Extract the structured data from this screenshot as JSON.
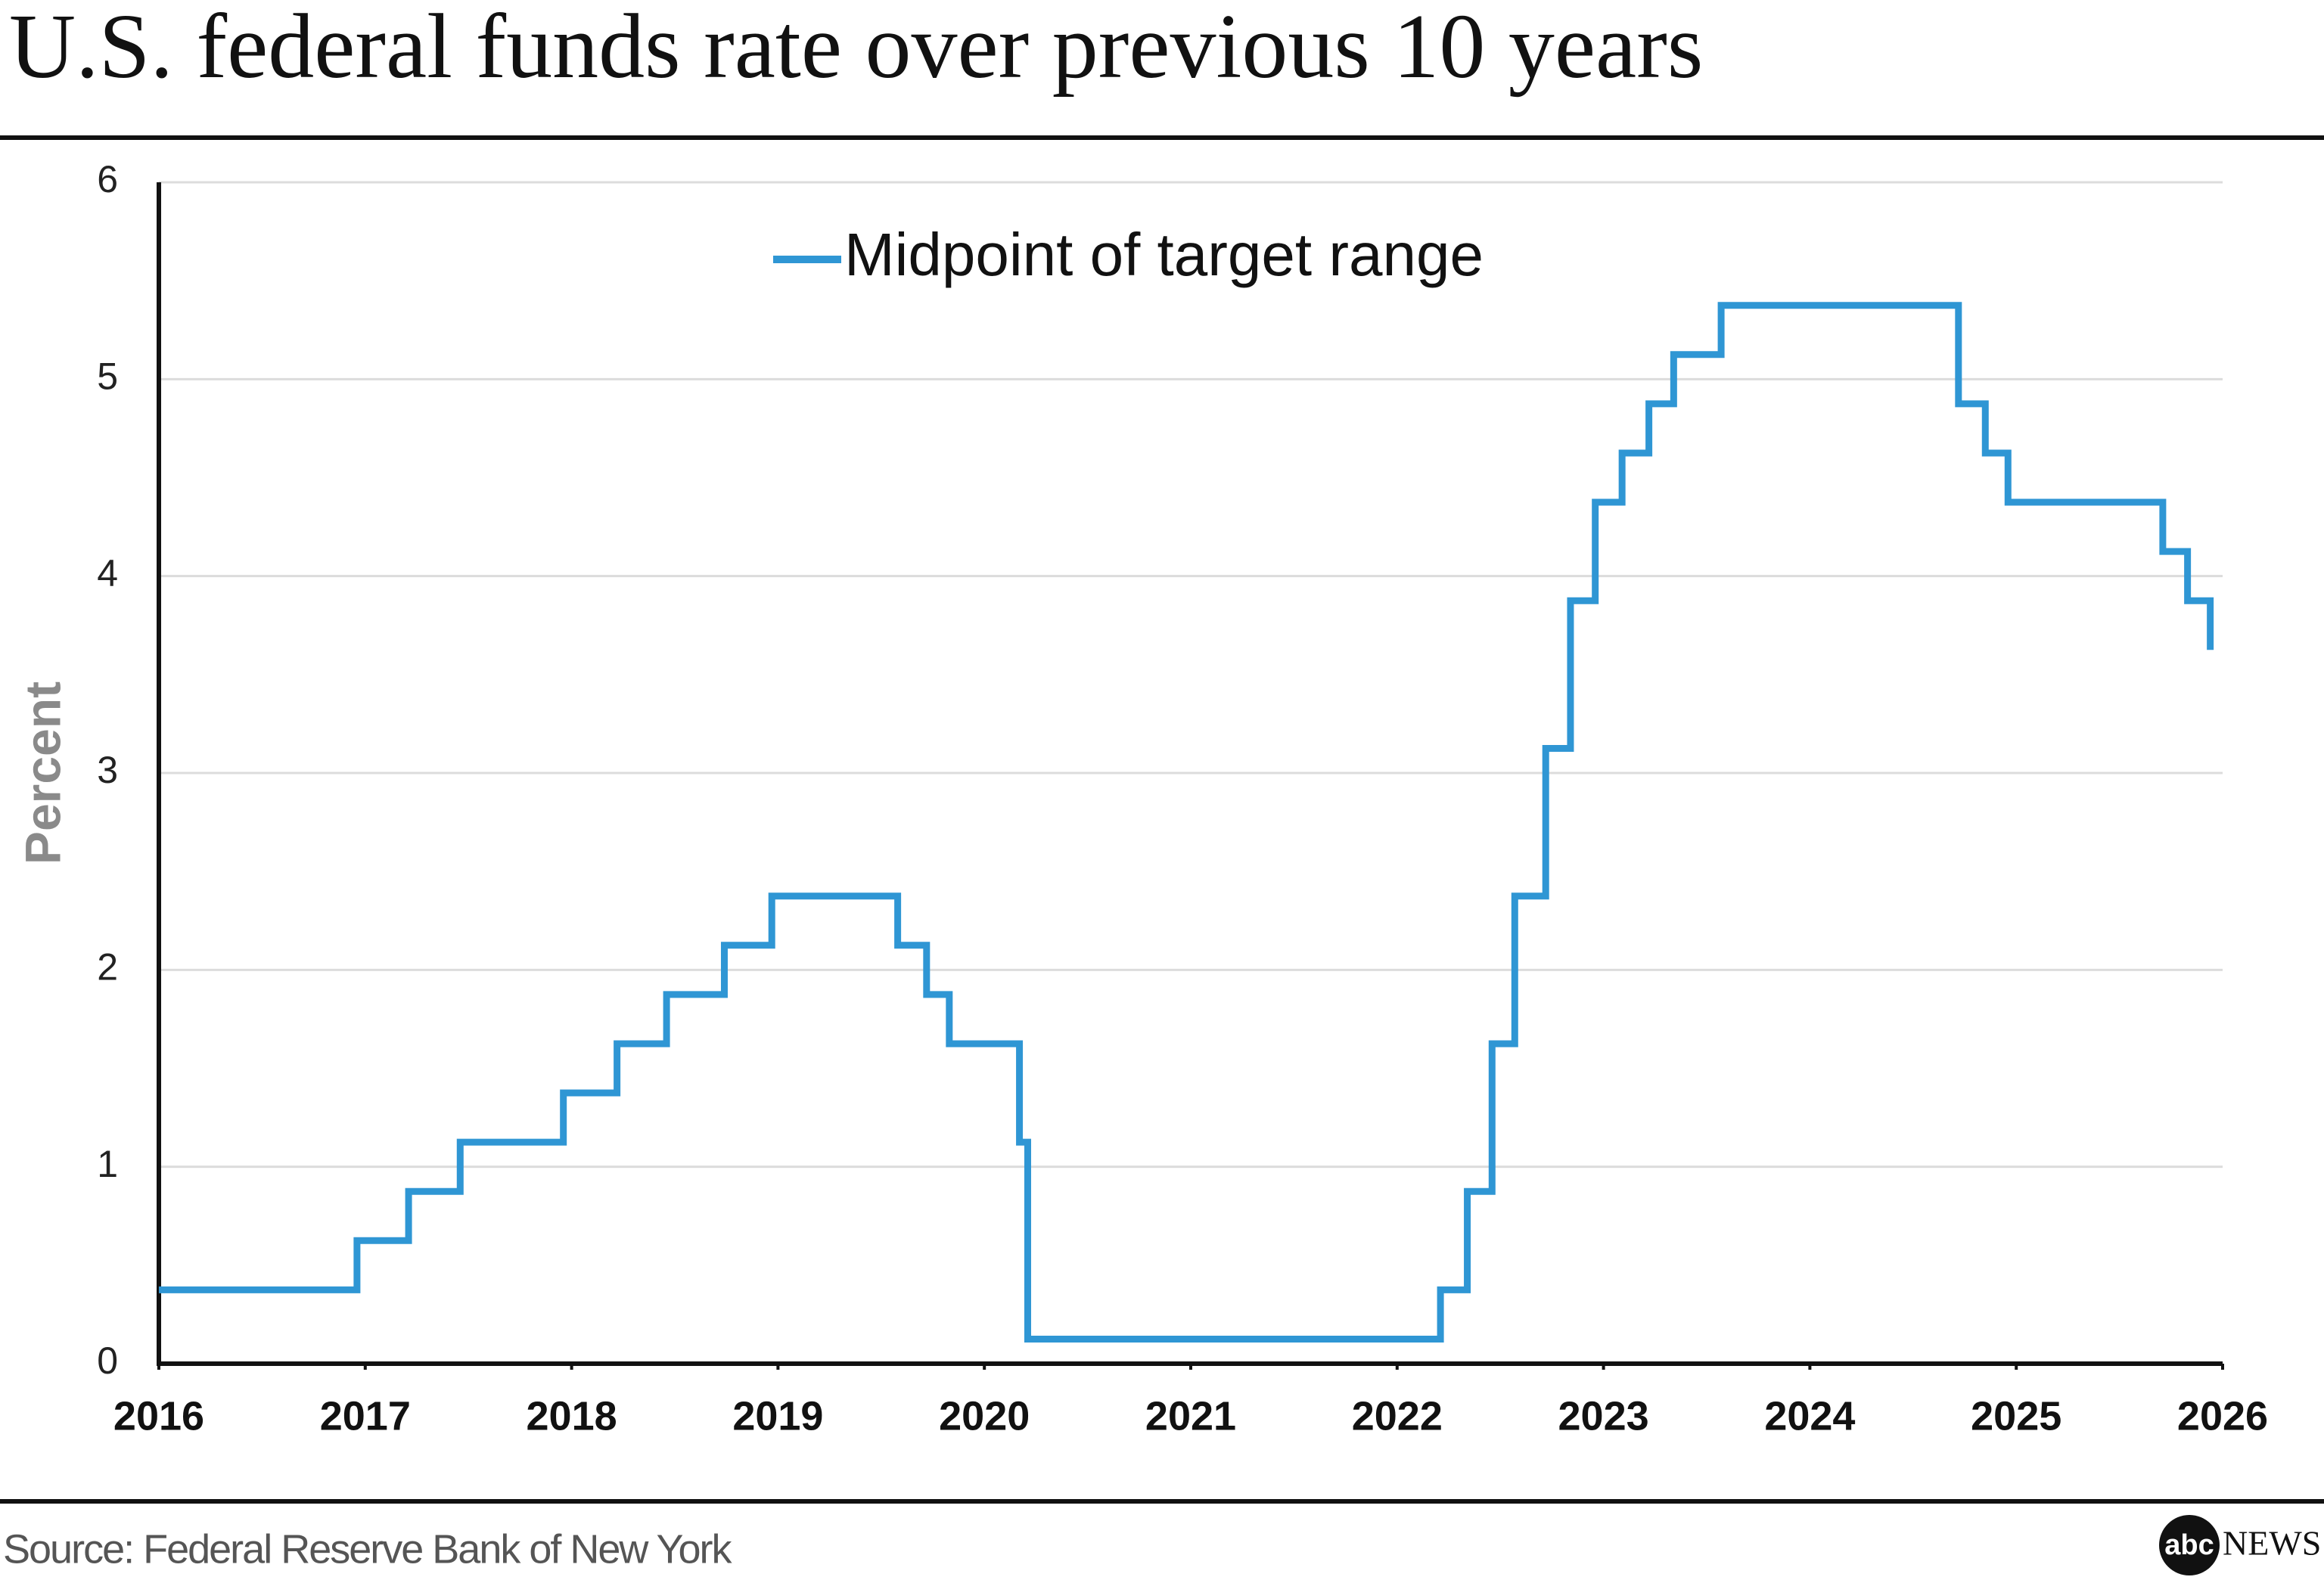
{
  "chart_data": {
    "type": "line",
    "step": true,
    "title": "U.S. federal funds rate over previous 10 years",
    "ylabel": "Percent",
    "source": "Source: Federal Reserve Bank of New York",
    "logo_badge": "abc",
    "logo_text": "NEWS",
    "x": [
      2016.0,
      2016.96,
      2017.21,
      2017.46,
      2017.96,
      2018.22,
      2018.46,
      2018.74,
      2018.97,
      2019.58,
      2019.72,
      2019.83,
      2020.17,
      2020.21,
      2022.21,
      2022.34,
      2022.46,
      2022.57,
      2022.72,
      2022.84,
      2022.96,
      2023.09,
      2023.22,
      2023.34,
      2023.57,
      2024.72,
      2024.85,
      2024.96,
      2025.71,
      2025.83,
      2025.94
    ],
    "series": [
      {
        "name": "Midpoint of target range",
        "color": "#2f96d4",
        "values": [
          0.375,
          0.625,
          0.875,
          1.125,
          1.375,
          1.625,
          1.875,
          2.125,
          2.375,
          2.125,
          1.875,
          1.625,
          1.125,
          0.125,
          0.375,
          0.875,
          1.625,
          2.375,
          3.125,
          3.875,
          4.375,
          4.625,
          4.875,
          5.125,
          5.375,
          4.875,
          4.625,
          4.375,
          4.125,
          3.875,
          3.625
        ]
      }
    ],
    "xlim": [
      2016,
      2026
    ],
    "xticks": [
      2016,
      2017,
      2018,
      2019,
      2020,
      2021,
      2022,
      2023,
      2024,
      2025,
      2026
    ],
    "ylim": [
      0,
      6
    ],
    "yticks": [
      0,
      1,
      2,
      3,
      4,
      5,
      6
    ],
    "grid": true,
    "legend": "top"
  }
}
